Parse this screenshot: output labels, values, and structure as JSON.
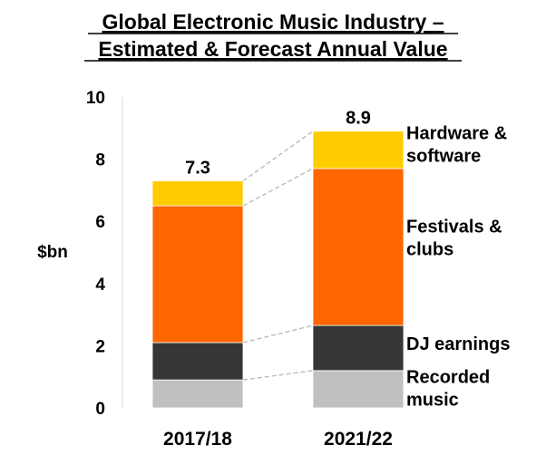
{
  "chart_data": {
    "type": "bar",
    "stacked": true,
    "title": [
      "Global Electronic Music Industry –",
      "Estimated & Forecast Annual Value"
    ],
    "ylabel": "$bn",
    "xlabel": "",
    "ylim": [
      0,
      10
    ],
    "yticks": [
      "0",
      "2",
      "4",
      "6",
      "8",
      "10"
    ],
    "categories": [
      "2017/18",
      "2021/22"
    ],
    "totals": [
      "7.3",
      "8.9"
    ],
    "series": [
      {
        "name": "Recorded music",
        "label_lines": [
          "Recorded",
          "music"
        ],
        "color": "#c0c0c0",
        "values": [
          0.9,
          1.2
        ]
      },
      {
        "name": "DJ earnings",
        "label_lines": [
          "DJ earnings"
        ],
        "color": "#363636",
        "values": [
          1.2,
          1.45
        ]
      },
      {
        "name": "Festivals & clubs",
        "label_lines": [
          "Festivals &",
          "clubs"
        ],
        "color": "#ff6600",
        "values": [
          4.4,
          5.05
        ]
      },
      {
        "name": "Hardware & software",
        "label_lines": [
          "Hardware &",
          "software"
        ],
        "color": "#ffcc00",
        "values": [
          0.8,
          1.2
        ]
      }
    ],
    "connector_color": "#bbbbbb",
    "grid": false,
    "legend_position": "right of bars"
  }
}
